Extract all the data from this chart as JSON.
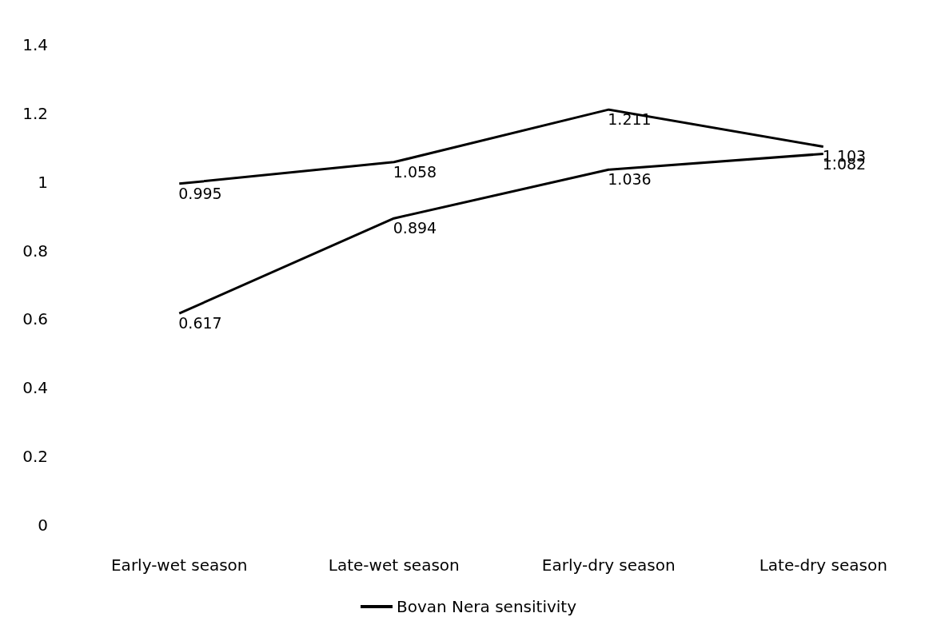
{
  "chart_data": {
    "type": "line",
    "categories": [
      "Early-wet season",
      "Late-wet season",
      "Early-dry season",
      "Late-dry season"
    ],
    "series": [
      {
        "name": "Bovan Nera sensitivity",
        "color": "#000000",
        "values": [
          0.995,
          1.058,
          1.211,
          1.103
        ]
      },
      {
        "color": "#000000",
        "values": [
          0.617,
          0.894,
          1.036,
          1.082
        ]
      }
    ],
    "ylim": [
      0,
      1.4
    ],
    "yticks": [
      0,
      0.2,
      0.4,
      0.6,
      0.8,
      1,
      1.2,
      1.4
    ],
    "grid": false,
    "legend": "bottom",
    "marker": "none",
    "line_style": "solid",
    "data_labels": true
  }
}
